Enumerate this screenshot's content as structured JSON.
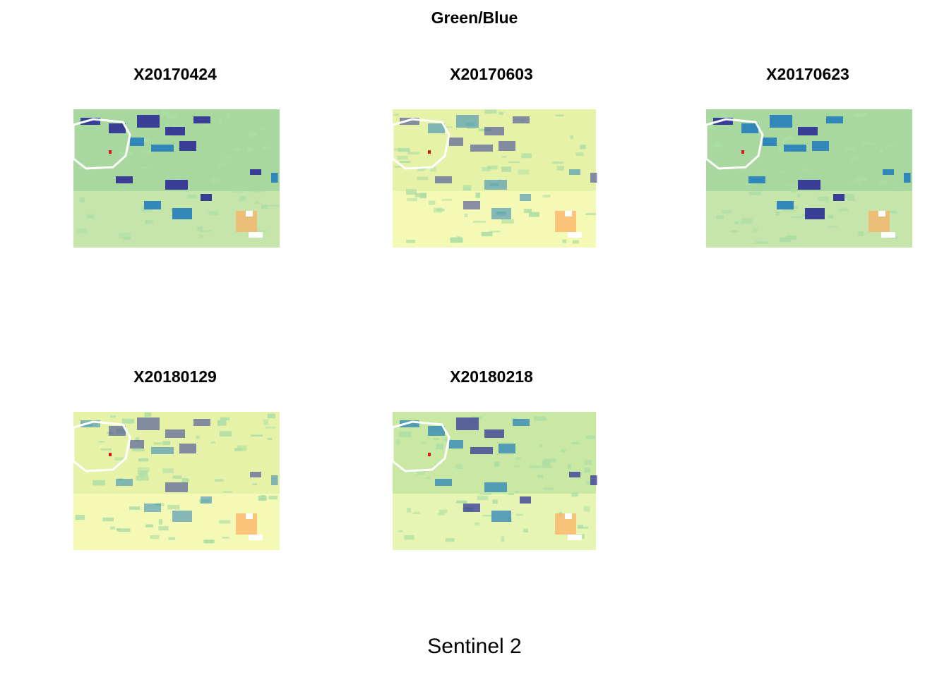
{
  "figure": {
    "title": "Green/Blue",
    "subtitle": "Sentinel 2"
  },
  "panels": [
    {
      "label": "X20170424",
      "variant": "dark"
    },
    {
      "label": "X20170603",
      "variant": "light"
    },
    {
      "label": "X20170623",
      "variant": "dark"
    },
    {
      "label": "X20180129",
      "variant": "light"
    },
    {
      "label": "X20180218",
      "variant": "mid"
    }
  ],
  "colors": {
    "palette": [
      "#d7191c",
      "#fdae61",
      "#ffffbf",
      "#abdda4",
      "#2b83ba",
      "#313695"
    ],
    "background_dark": "#a8d8a0",
    "background_mid": "#c8e8a4",
    "background_light": "#e6f2a8",
    "outline": "#ffffff"
  }
}
